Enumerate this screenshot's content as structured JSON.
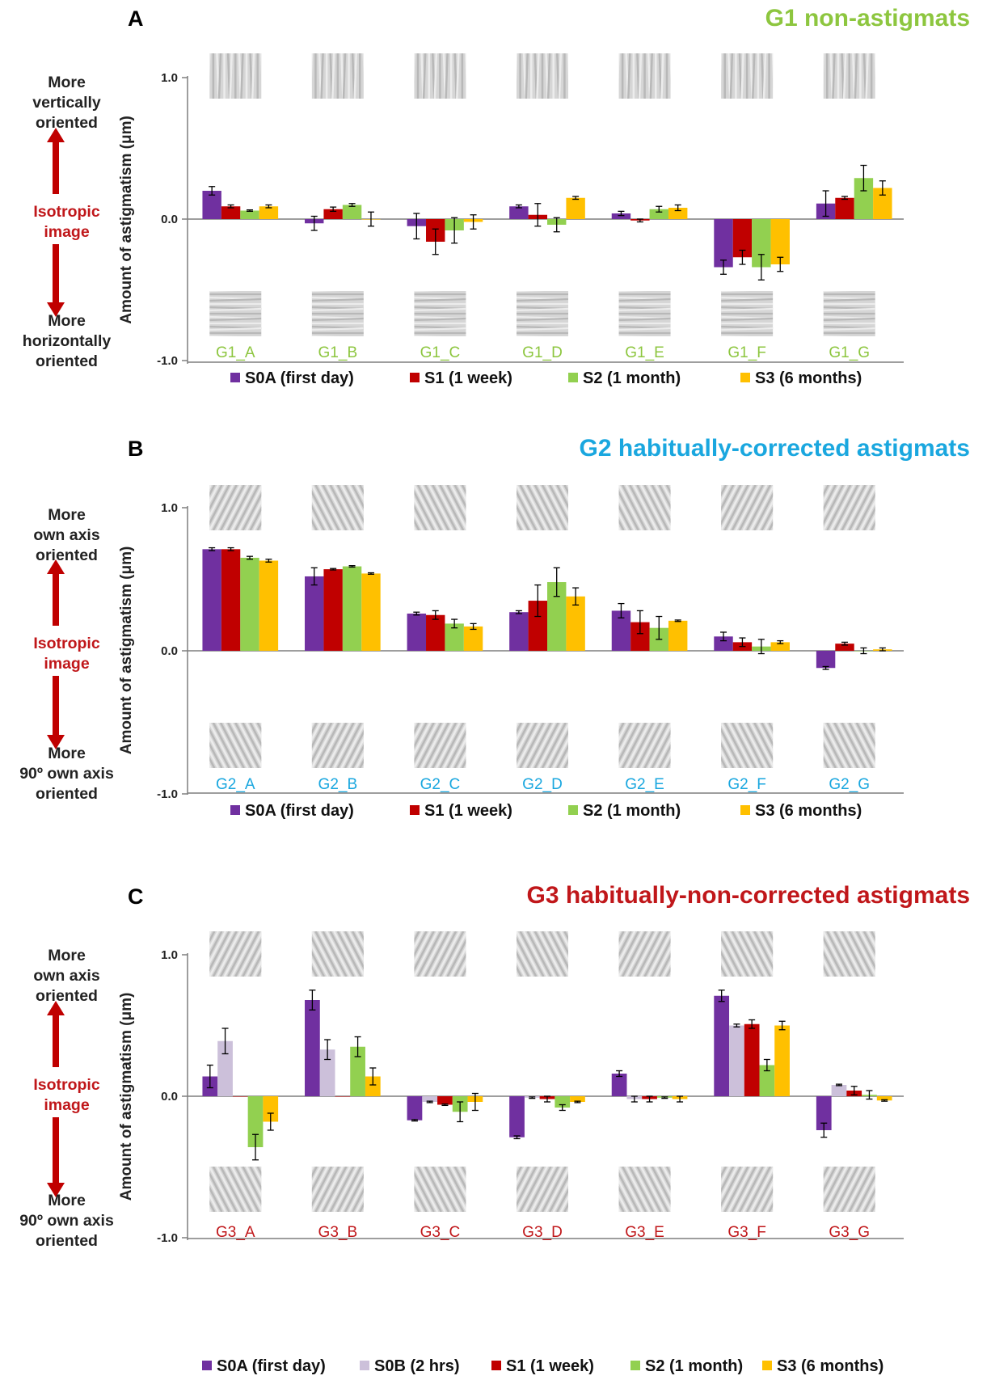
{
  "panels": [
    {
      "letter": "A",
      "title": "G1 non-astigmats",
      "title_color": "#8dc63f",
      "group_color": "#8dc63f",
      "side": {
        "top": "More\nvertically\noriented",
        "mid": "Isotropic\nimage",
        "bottom": "More\nhorizontally\noriented"
      },
      "thumb_top": "vertical",
      "thumb_bottom": [
        "horizontal",
        "horizontal",
        "horizontal",
        "horizontal",
        "horizontal",
        "horizontal",
        "horizontal"
      ]
    },
    {
      "letter": "B",
      "title": "G2 habitually-corrected astigmats",
      "title_color": "#1aa7df",
      "group_color": "#1aa7df",
      "side": {
        "top": "More\nown axis\noriented",
        "mid": "Isotropic\nimage",
        "bottom": "More\n90º own axis\noriented"
      },
      "thumb_top": [
        "oblique-r",
        "oblique-l",
        "oblique-l",
        "oblique-l",
        "oblique-l",
        "oblique-r",
        "oblique-r"
      ],
      "thumb_bottom": [
        "oblique-l",
        "oblique-r",
        "oblique-r",
        "oblique-r",
        "oblique-r",
        "oblique-l",
        "oblique-l"
      ]
    },
    {
      "letter": "C",
      "title": "G3 habitually-non-corrected astigmats",
      "title_color": "#c0171a",
      "group_color": "#c0171a",
      "side": {
        "top": "More\nown axis\noriented",
        "mid": "Isotropic\nimage",
        "bottom": "More\n90º own axis\noriented"
      },
      "thumb_top": [
        "oblique-r",
        "oblique-l",
        "oblique-r",
        "oblique-l",
        "oblique-r",
        "oblique-l",
        "oblique-l"
      ],
      "thumb_bottom": [
        "oblique-l",
        "oblique-r",
        "oblique-l",
        "oblique-r",
        "oblique-l",
        "oblique-r",
        "oblique-r"
      ]
    }
  ],
  "colors": {
    "S0A": "#7030a0",
    "S0B": "#ccc0da",
    "S1": "#c00000",
    "S2": "#92d050",
    "S3": "#ffc000",
    "arrow": "#c00000",
    "axis": "#7f7f7f"
  },
  "chart_data": [
    {
      "type": "bar",
      "ylabel": "Amount of astigmatism (μm)",
      "ylim": [
        -1.0,
        1.0
      ],
      "yticks": [
        "1.0",
        "0.0",
        "-1.0"
      ],
      "categories": [
        "G1_A",
        "G1_B",
        "G1_C",
        "G1_D",
        "G1_E",
        "G1_F",
        "G1_G"
      ],
      "series": [
        {
          "name": "S0A (first day)",
          "key": "S0A",
          "values": [
            0.2,
            -0.03,
            -0.05,
            0.09,
            0.04,
            -0.34,
            0.11
          ],
          "err": [
            0.03,
            0.05,
            0.09,
            0.01,
            0.015,
            0.05,
            0.09
          ]
        },
        {
          "name": "S1 (1 week)",
          "key": "S1",
          "values": [
            0.09,
            0.07,
            -0.16,
            0.03,
            -0.01,
            -0.27,
            0.15
          ],
          "err": [
            0.01,
            0.015,
            0.09,
            0.08,
            0.01,
            0.05,
            0.01
          ]
        },
        {
          "name": "S2 (1 month)",
          "key": "S2",
          "values": [
            0.06,
            0.1,
            -0.08,
            -0.04,
            0.07,
            -0.34,
            0.29
          ],
          "err": [
            0.005,
            0.01,
            0.09,
            0.05,
            0.02,
            0.09,
            0.09
          ]
        },
        {
          "name": "S3 (6 months)",
          "key": "S3",
          "values": [
            0.09,
            0.0,
            -0.02,
            0.15,
            0.08,
            -0.32,
            0.22
          ],
          "err": [
            0.01,
            0.05,
            0.05,
            0.01,
            0.02,
            0.05,
            0.05
          ]
        }
      ]
    },
    {
      "type": "bar",
      "ylabel": "Amount of astigmatism (μm)",
      "ylim": [
        -1.0,
        1.0
      ],
      "yticks": [
        "1.0",
        "0.0",
        "-1.0"
      ],
      "categories": [
        "G2_A",
        "G2_B",
        "G2_C",
        "G2_D",
        "G2_E",
        "G2_F",
        "G2_G"
      ],
      "series": [
        {
          "name": "S0A (first day)",
          "key": "S0A",
          "values": [
            0.71,
            0.52,
            0.26,
            0.27,
            0.28,
            0.1,
            -0.12
          ],
          "err": [
            0.01,
            0.06,
            0.01,
            0.01,
            0.05,
            0.03,
            0.01
          ]
        },
        {
          "name": "S1 (1 week)",
          "key": "S1",
          "values": [
            0.71,
            0.57,
            0.25,
            0.35,
            0.2,
            0.06,
            0.05
          ],
          "err": [
            0.01,
            0.005,
            0.03,
            0.11,
            0.08,
            0.03,
            0.01
          ]
        },
        {
          "name": "S2 (1 month)",
          "key": "S2",
          "values": [
            0.65,
            0.59,
            0.19,
            0.48,
            0.16,
            0.03,
            0.0
          ],
          "err": [
            0.01,
            0.005,
            0.03,
            0.1,
            0.08,
            0.05,
            0.02
          ]
        },
        {
          "name": "S3 (6 months)",
          "key": "S3",
          "values": [
            0.63,
            0.54,
            0.17,
            0.38,
            0.21,
            0.06,
            0.01
          ],
          "err": [
            0.01,
            0.005,
            0.02,
            0.06,
            0.005,
            0.01,
            0.01
          ]
        }
      ]
    },
    {
      "type": "bar",
      "ylabel": "Amount of astigmatism (μm)",
      "ylim": [
        -1.0,
        1.0
      ],
      "yticks": [
        "1.0",
        "0.0",
        "-1.0"
      ],
      "categories": [
        "G3_A",
        "G3_B",
        "G3_C",
        "G3_D",
        "G3_E",
        "G3_F",
        "G3_G"
      ],
      "series": [
        {
          "name": "S0A (first day)",
          "key": "S0A",
          "values": [
            0.14,
            0.68,
            -0.17,
            -0.29,
            0.16,
            0.71,
            -0.24
          ],
          "err": [
            0.08,
            0.07,
            0.005,
            0.01,
            0.02,
            0.04,
            0.05
          ]
        },
        {
          "name": "S0B (2 hrs)",
          "key": "S0B",
          "values": [
            0.39,
            0.33,
            -0.04,
            -0.01,
            -0.02,
            0.5,
            0.08
          ],
          "err": [
            0.09,
            0.07,
            0.005,
            0.005,
            0.02,
            0.01,
            0.005
          ]
        },
        {
          "name": "S1 (1 week)",
          "key": "S1",
          "values": [
            0.0,
            0.0,
            -0.06,
            -0.02,
            -0.02,
            0.51,
            0.04
          ],
          "err": [
            0.0,
            0.0,
            0.005,
            0.02,
            0.02,
            0.03,
            0.03
          ]
        },
        {
          "name": "S2 (1 month)",
          "key": "S2",
          "values": [
            -0.36,
            0.35,
            -0.11,
            -0.08,
            -0.01,
            0.22,
            0.01
          ],
          "err": [
            0.09,
            0.07,
            0.07,
            0.02,
            0.005,
            0.04,
            0.03
          ]
        },
        {
          "name": "S3 (6 months)",
          "key": "S3",
          "values": [
            -0.18,
            0.14,
            -0.04,
            -0.04,
            -0.02,
            0.5,
            -0.03
          ],
          "err": [
            0.06,
            0.06,
            0.06,
            0.005,
            0.02,
            0.03,
            0.005
          ]
        }
      ]
    }
  ]
}
